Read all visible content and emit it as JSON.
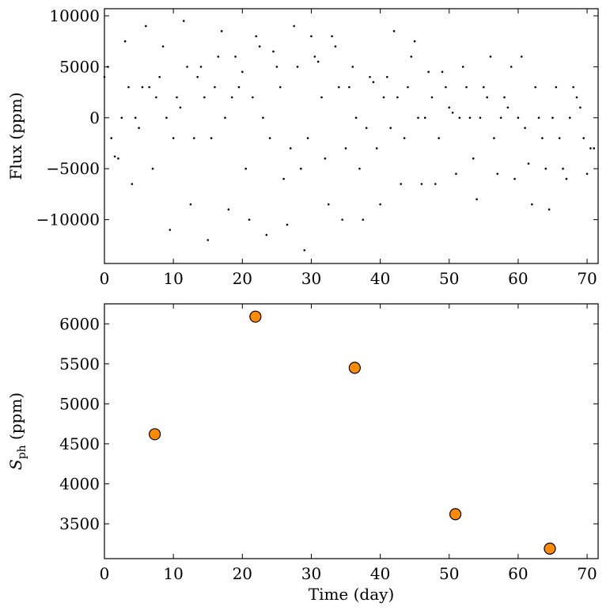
{
  "chart_data": [
    {
      "type": "scatter",
      "ylabel": "Flux (ppm)",
      "color": "#000000",
      "x": [
        0,
        0.5,
        1,
        1.5,
        2,
        2.5,
        3,
        3.5,
        4,
        4.5,
        5,
        5.5,
        6,
        6.5,
        7,
        7.5,
        8,
        8.5,
        9,
        9.5,
        10,
        10.5,
        11,
        11.5,
        12,
        12.5,
        13,
        13.5,
        14,
        14.5,
        15,
        15.5,
        16,
        16.5,
        17,
        17.5,
        18,
        18.5,
        19,
        19.5,
        20,
        20.5,
        21,
        21.5,
        22,
        22.5,
        23,
        23.5,
        24,
        24.5,
        25,
        25.5,
        26,
        26.5,
        27,
        27.5,
        28,
        28.5,
        29,
        29.5,
        30,
        30.5,
        31,
        31.5,
        32,
        32.5,
        33,
        33.5,
        34,
        34.5,
        35,
        35.5,
        36,
        36.5,
        37,
        37.5,
        38,
        38.5,
        39,
        39.5,
        40,
        40.5,
        41,
        41.5,
        42,
        42.5,
        43,
        43.5,
        44,
        44.5,
        45,
        45.5,
        46,
        46.5,
        47,
        47.5,
        48,
        48.5,
        49,
        49.5,
        50,
        50.5,
        51,
        51.5,
        52,
        52.5,
        53,
        53.5,
        54,
        54.5,
        55,
        55.5,
        56,
        56.5,
        57,
        57.5,
        58,
        58.5,
        59,
        59.5,
        60,
        60.5,
        61,
        61.5,
        62,
        62.5,
        63,
        63.5,
        64,
        64.5,
        65,
        65.5,
        66,
        66.5,
        67,
        67.5,
        68,
        68.5,
        69,
        69.5,
        70,
        70.5,
        71
      ],
      "values": [
        4000,
        5000,
        -2000,
        -3800,
        -4000,
        0,
        7500,
        3000,
        -6500,
        0,
        -1000,
        3000,
        9000,
        3000,
        -5000,
        2000,
        4000,
        7000,
        0,
        -11000,
        -2000,
        2000,
        1000,
        9500,
        5000,
        -8500,
        -2000,
        4000,
        5000,
        2000,
        -12000,
        -2000,
        3000,
        6000,
        8500,
        0,
        -9000,
        2000,
        6000,
        3000,
        4500,
        -5000,
        -10000,
        2000,
        8000,
        7000,
        0,
        -11500,
        -2000,
        6500,
        5000,
        3000,
        -6000,
        -10500,
        -3000,
        9000,
        5000,
        -5000,
        -13000,
        -2000,
        8000,
        6000,
        5500,
        2000,
        -4000,
        -8500,
        8000,
        7000,
        3000,
        -10000,
        -3000,
        3000,
        5000,
        0,
        -5000,
        -10000,
        -1000,
        4000,
        3500,
        -3000,
        -8500,
        2000,
        4000,
        -1000,
        8500,
        2000,
        -6500,
        -2000,
        3000,
        6000,
        7500,
        0,
        -6500,
        0,
        4500,
        2000,
        -6500,
        -2000,
        4500,
        3000,
        1000,
        500,
        -5500,
        0,
        5000,
        3000,
        0,
        -4000,
        -8000,
        0,
        3000,
        2000,
        6000,
        -2000,
        -5500,
        0,
        2000,
        1000,
        5000,
        -6000,
        0,
        6000,
        -1000,
        -4500,
        -8500,
        3000,
        0,
        -2000,
        -5000,
        -9000,
        0,
        3000,
        -2000,
        -5000,
        -6000,
        0,
        3000,
        2000,
        1000,
        -2000,
        -5500,
        -3000,
        -3000
      ],
      "xlim": [
        0,
        71.6
      ],
      "xticks": [
        0,
        10,
        20,
        30,
        40,
        50,
        60,
        70
      ],
      "ylim": [
        -14300,
        10700
      ],
      "yticks": [
        {
          "value": -10000,
          "label": "−10000"
        },
        {
          "value": -5000,
          "label": "−5000"
        },
        0,
        5000,
        10000
      ]
    },
    {
      "type": "scatter",
      "xlabel": "Time (day)",
      "ylabel": "S",
      "ylabel_sub": "ph",
      "ylabel_unit": " (ppm)",
      "color": "#ff8c00",
      "edgecolor": "#000000",
      "x": [
        7.3,
        21.9,
        36.3,
        50.9,
        64.6
      ],
      "values": [
        4620,
        6090,
        5450,
        3620,
        3190
      ],
      "xlim": [
        0,
        71.6
      ],
      "xticks": [
        0,
        10,
        20,
        30,
        40,
        50,
        60,
        70
      ],
      "ylim": [
        3065,
        6250
      ],
      "yticks": [
        3500,
        4000,
        4500,
        5000,
        5500,
        6000
      ]
    }
  ]
}
